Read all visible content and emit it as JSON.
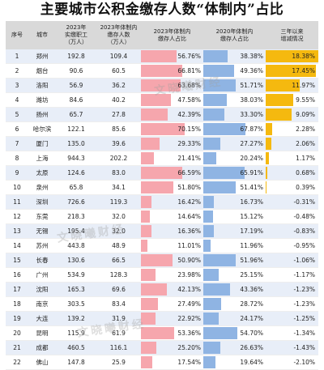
{
  "title": "主要城市公积金缴存人数“体制内”占比",
  "watermark": "文晓曦财经",
  "headers": [
    "序号",
    "城市",
    "2023年\n实缴职工\n（万人）",
    "2023年体制内\n缴存人数\n（万人）",
    "2023年体制内\n缴存人占比",
    "2020年体制内\n缴存人占比",
    "三年以来\n增减情况"
  ],
  "colors": {
    "header_bg": "#d9d9d9",
    "pct2023": "#f6a6ad",
    "pct2020": "#8fb4e3",
    "change": "#f5b90f",
    "row_alt": "#e8eef8"
  },
  "chart_data": {
    "type": "table",
    "title": "主要城市公积金缴存人数“体制内”占比",
    "columns": [
      "序号",
      "城市",
      "2023年实缴职工（万人）",
      "2023年体制内缴存人数（万人）",
      "2023年体制内缴存人占比",
      "2020年体制内缴存人占比",
      "三年以来增减情况"
    ],
    "rows": [
      {
        "no": "1",
        "city": "郑州",
        "workers": "192.8",
        "inst": "109.4",
        "pct23": "56.76%",
        "pct20": "38.38%",
        "chg": "18.38%"
      },
      {
        "no": "2",
        "city": "烟台",
        "workers": "90.6",
        "inst": "60.5",
        "pct23": "66.81%",
        "pct20": "49.36%",
        "chg": "17.45%"
      },
      {
        "no": "3",
        "city": "洛阳",
        "workers": "56.9",
        "inst": "36.2",
        "pct23": "63.68%",
        "pct20": "51.71%",
        "chg": "11.97%"
      },
      {
        "no": "4",
        "city": "潍坊",
        "workers": "84.6",
        "inst": "40.2",
        "pct23": "47.58%",
        "pct20": "38.03%",
        "chg": "9.55%"
      },
      {
        "no": "5",
        "city": "扬州",
        "workers": "65.7",
        "inst": "27.8",
        "pct23": "42.39%",
        "pct20": "33.30%",
        "chg": "9.09%"
      },
      {
        "no": "6",
        "city": "哈尔滨",
        "workers": "122.1",
        "inst": "85.6",
        "pct23": "70.15%",
        "pct20": "67.87%",
        "chg": "2.28%"
      },
      {
        "no": "7",
        "city": "厦门",
        "workers": "135.0",
        "inst": "39.6",
        "pct23": "29.33%",
        "pct20": "27.27%",
        "chg": "2.06%"
      },
      {
        "no": "8",
        "city": "上海",
        "workers": "944.3",
        "inst": "202.2",
        "pct23": "21.41%",
        "pct20": "20.24%",
        "chg": "1.17%"
      },
      {
        "no": "9",
        "city": "太原",
        "workers": "124.6",
        "inst": "83.0",
        "pct23": "66.59%",
        "pct20": "65.91%",
        "chg": "0.68%"
      },
      {
        "no": "10",
        "city": "泉州",
        "workers": "65.8",
        "inst": "34.1",
        "pct23": "51.80%",
        "pct20": "51.41%",
        "chg": "0.39%"
      },
      {
        "no": "11",
        "city": "深圳",
        "workers": "726.6",
        "inst": "119.3",
        "pct23": "16.42%",
        "pct20": "16.73%",
        "chg": "-0.31%"
      },
      {
        "no": "12",
        "city": "东莞",
        "workers": "218.3",
        "inst": "32.0",
        "pct23": "14.64%",
        "pct20": "15.12%",
        "chg": "-0.48%"
      },
      {
        "no": "13",
        "city": "无锡",
        "workers": "195.4",
        "inst": "32.0",
        "pct23": "16.36%",
        "pct20": "17.19%",
        "chg": "-0.83%"
      },
      {
        "no": "14",
        "city": "苏州",
        "workers": "443.8",
        "inst": "48.9",
        "pct23": "11.01%",
        "pct20": "11.96%",
        "chg": "-0.95%"
      },
      {
        "no": "15",
        "city": "长春",
        "workers": "130.6",
        "inst": "66.5",
        "pct23": "50.90%",
        "pct20": "51.96%",
        "chg": "-1.06%"
      },
      {
        "no": "16",
        "city": "广州",
        "workers": "534.9",
        "inst": "128.3",
        "pct23": "23.98%",
        "pct20": "25.15%",
        "chg": "-1.17%"
      },
      {
        "no": "17",
        "city": "沈阳",
        "workers": "165.3",
        "inst": "69.6",
        "pct23": "42.13%",
        "pct20": "43.36%",
        "chg": "-1.23%"
      },
      {
        "no": "18",
        "city": "南京",
        "workers": "303.5",
        "inst": "83.4",
        "pct23": "27.49%",
        "pct20": "28.72%",
        "chg": "-1.23%"
      },
      {
        "no": "19",
        "city": "大连",
        "workers": "139.2",
        "inst": "31.9",
        "pct23": "22.92%",
        "pct20": "24.17%",
        "chg": "-1.25%"
      },
      {
        "no": "20",
        "city": "昆明",
        "workers": "115.9",
        "inst": "61.9",
        "pct23": "53.36%",
        "pct20": "54.70%",
        "chg": "-1.34%"
      },
      {
        "no": "21",
        "city": "成都",
        "workers": "460.5",
        "inst": "116.1",
        "pct23": "25.20%",
        "pct20": "26.63%",
        "chg": "-1.43%"
      },
      {
        "no": "22",
        "city": "佛山",
        "workers": "147.8",
        "inst": "25.9",
        "pct23": "17.54%",
        "pct20": "19.64%",
        "chg": "-2.10%"
      }
    ]
  }
}
